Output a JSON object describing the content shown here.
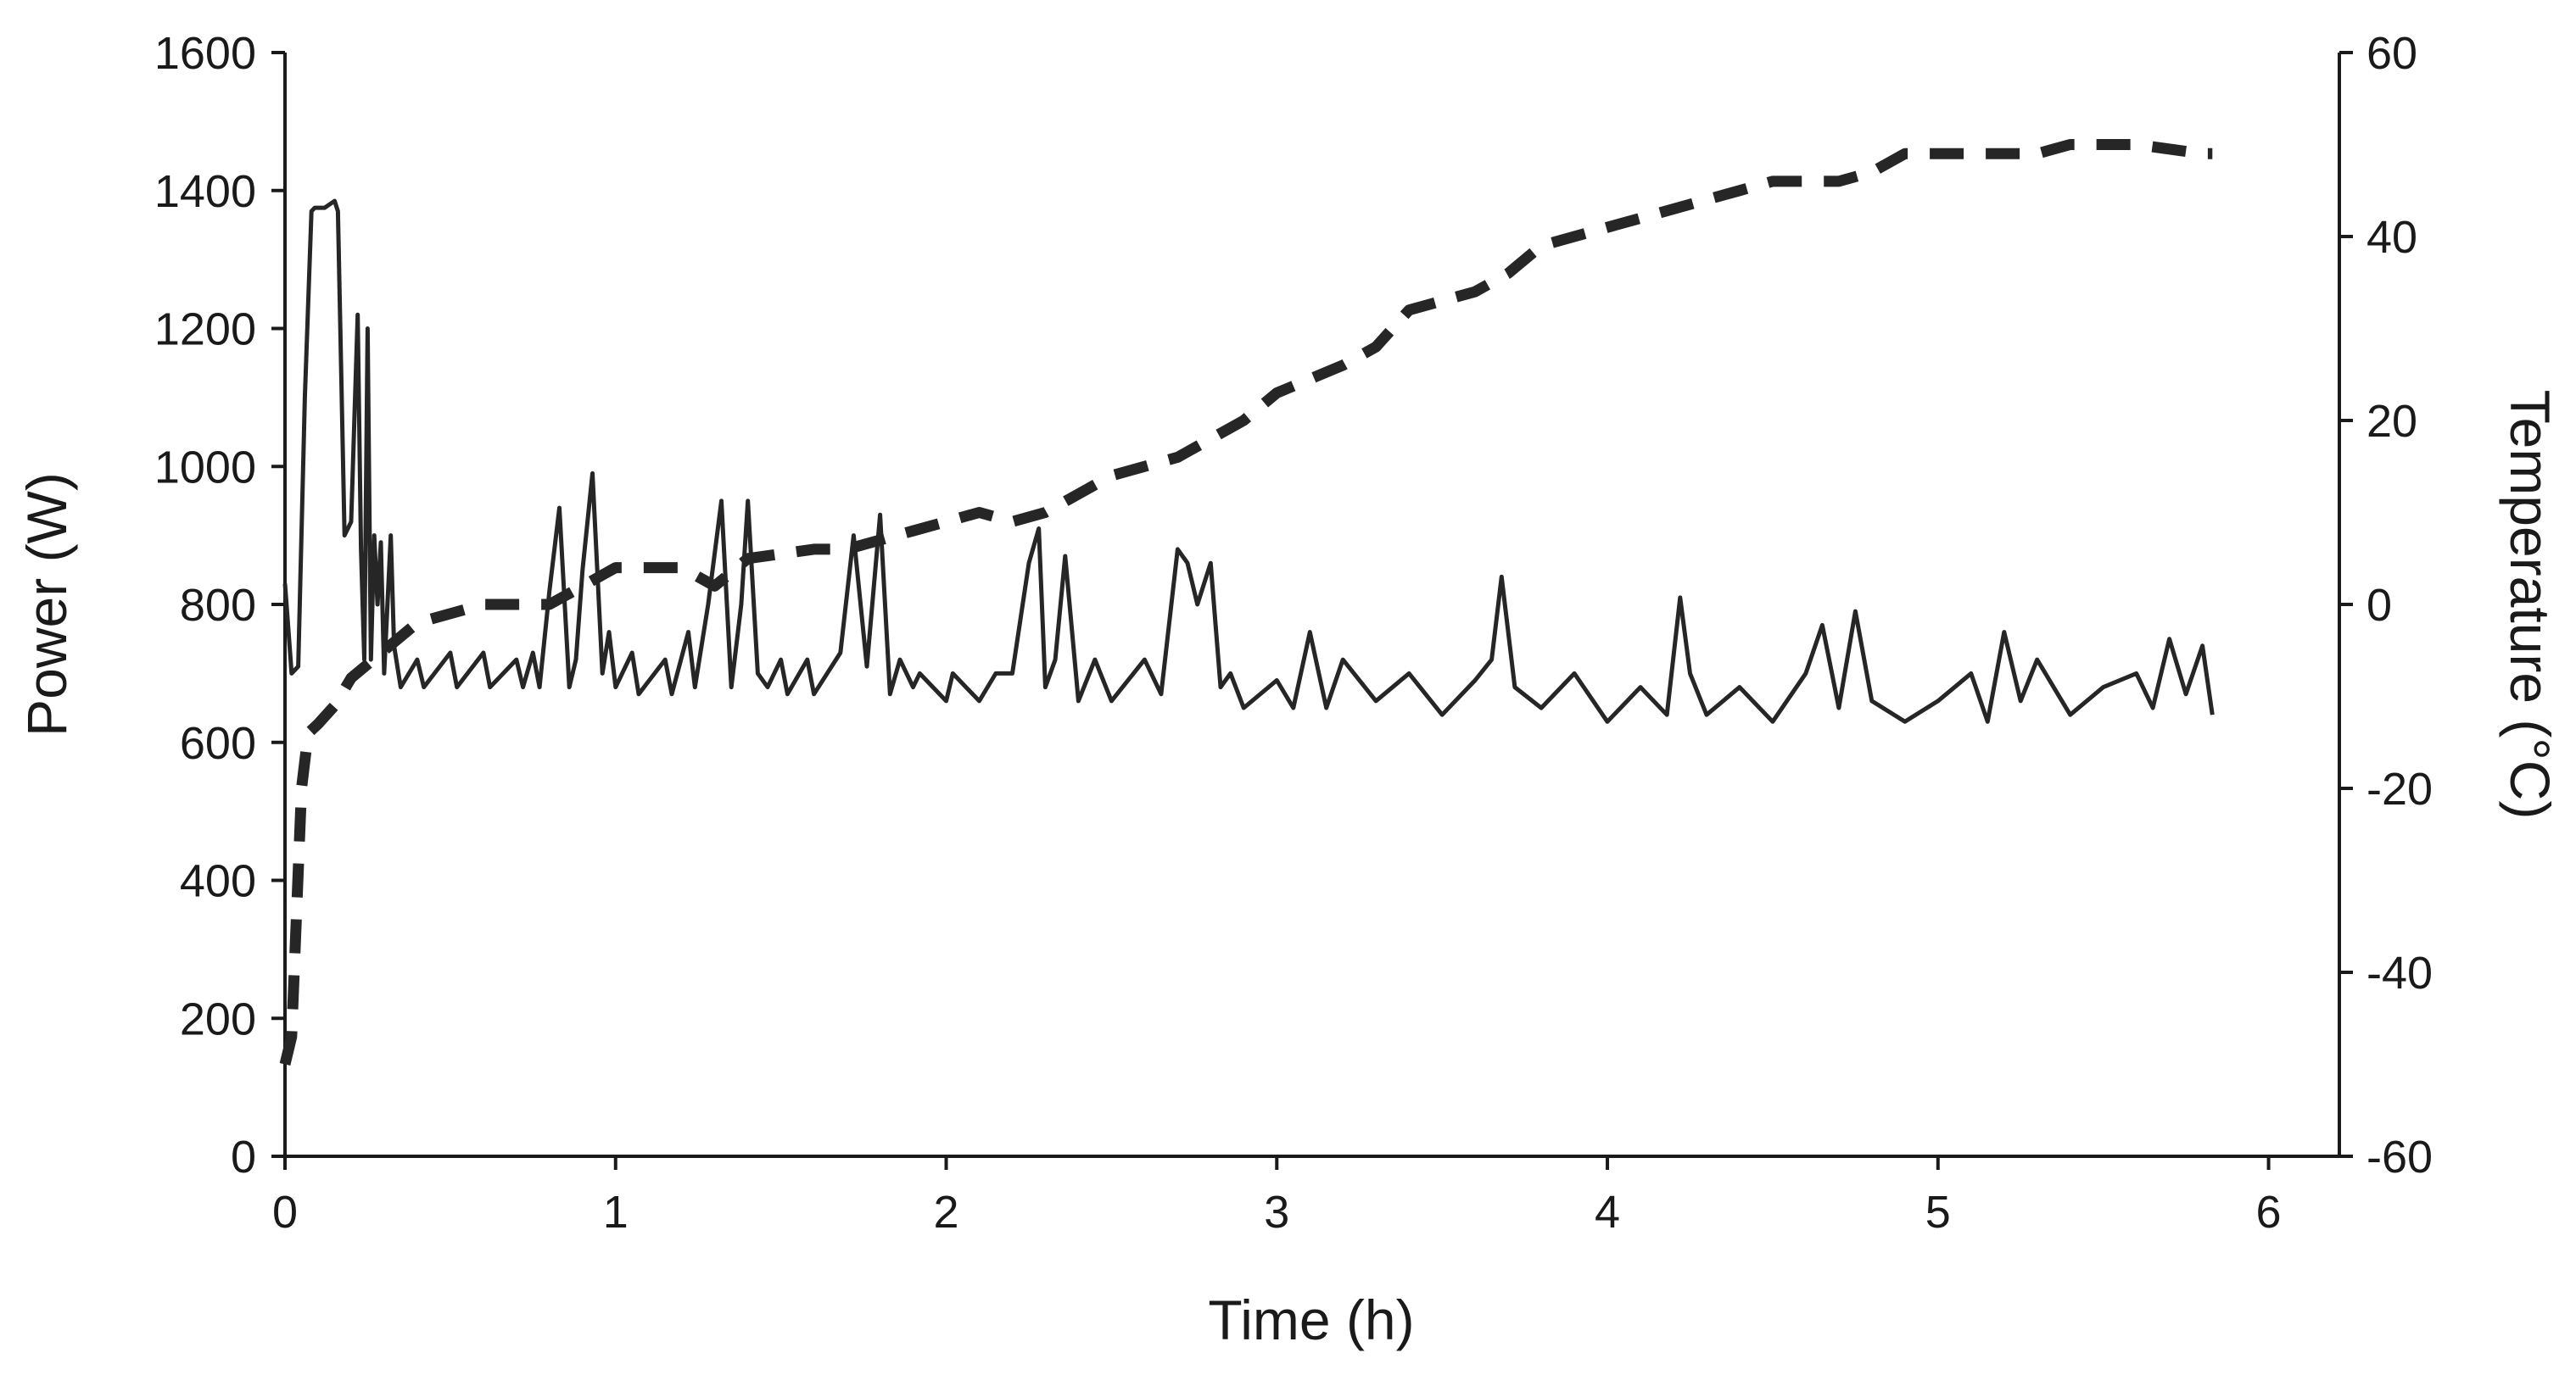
{
  "chart_data": {
    "type": "line",
    "title": "",
    "xlabel": "Time (h)",
    "ylabel": "Power (W)",
    "y2label": "Temperature (°C)",
    "xlim": [
      0,
      6.25
    ],
    "ylim": [
      0,
      1600
    ],
    "y2lim": [
      -60,
      60
    ],
    "x_ticks": [
      0,
      1,
      2,
      3,
      4,
      5,
      6
    ],
    "y_ticks": [
      0,
      200,
      400,
      600,
      800,
      1000,
      1200,
      1400,
      1600
    ],
    "y2_ticks": [
      -60,
      -40,
      -20,
      0,
      20,
      40,
      60
    ],
    "grid": false,
    "legend": "none",
    "series": [
      {
        "axis": "left",
        "style": "solid",
        "color": "#262626",
        "x": [
          0,
          0.02,
          0.04,
          0.06,
          0.08,
          0.09,
          0.12,
          0.15,
          0.16,
          0.18,
          0.2,
          0.22,
          0.23,
          0.24,
          0.25,
          0.26,
          0.27,
          0.28,
          0.29,
          0.3,
          0.32,
          0.33,
          0.35,
          0.4,
          0.42,
          0.5,
          0.52,
          0.6,
          0.62,
          0.7,
          0.72,
          0.75,
          0.77,
          0.8,
          0.83,
          0.86,
          0.88,
          0.9,
          0.93,
          0.96,
          0.98,
          1.0,
          1.05,
          1.07,
          1.15,
          1.17,
          1.22,
          1.24,
          1.28,
          1.32,
          1.35,
          1.38,
          1.4,
          1.43,
          1.46,
          1.5,
          1.52,
          1.58,
          1.6,
          1.68,
          1.72,
          1.76,
          1.8,
          1.83,
          1.86,
          1.9,
          1.92,
          2.0,
          2.02,
          2.1,
          2.15,
          2.2,
          2.25,
          2.28,
          2.3,
          2.33,
          2.36,
          2.4,
          2.45,
          2.5,
          2.6,
          2.65,
          2.7,
          2.73,
          2.76,
          2.8,
          2.83,
          2.86,
          2.9,
          3.0,
          3.05,
          3.1,
          3.15,
          3.2,
          3.3,
          3.4,
          3.5,
          3.6,
          3.65,
          3.68,
          3.72,
          3.8,
          3.9,
          4.0,
          4.1,
          4.18,
          4.22,
          4.25,
          4.3,
          4.4,
          4.5,
          4.6,
          4.65,
          4.7,
          4.75,
          4.8,
          4.9,
          5.0,
          5.1,
          5.15,
          5.2,
          5.25,
          5.3,
          5.4,
          5.5,
          5.6,
          5.65,
          5.7,
          5.75,
          5.8,
          5.83
        ],
        "values": [
          830,
          700,
          710,
          1100,
          1370,
          1375,
          1375,
          1385,
          1370,
          900,
          920,
          1220,
          880,
          720,
          1200,
          720,
          900,
          800,
          890,
          700,
          900,
          740,
          680,
          720,
          680,
          730,
          680,
          730,
          680,
          720,
          680,
          730,
          680,
          820,
          940,
          680,
          720,
          850,
          990,
          700,
          760,
          680,
          730,
          670,
          720,
          670,
          760,
          680,
          800,
          950,
          680,
          800,
          950,
          700,
          680,
          720,
          670,
          720,
          670,
          730,
          900,
          710,
          930,
          670,
          720,
          680,
          700,
          660,
          700,
          660,
          700,
          700,
          860,
          910,
          680,
          720,
          870,
          660,
          720,
          660,
          720,
          670,
          880,
          860,
          800,
          860,
          680,
          700,
          650,
          690,
          650,
          760,
          650,
          720,
          660,
          700,
          640,
          690,
          720,
          840,
          680,
          650,
          700,
          630,
          680,
          640,
          810,
          700,
          640,
          680,
          630,
          700,
          770,
          650,
          790,
          660,
          630,
          660,
          700,
          630,
          760,
          660,
          720,
          640,
          680,
          700,
          650,
          750,
          670,
          740,
          640
        ]
      },
      {
        "axis": "right",
        "style": "dashed",
        "color": "#262626",
        "x": [
          0,
          0.02,
          0.03,
          0.05,
          0.07,
          0.1,
          0.15,
          0.2,
          0.3,
          0.4,
          0.5,
          0.6,
          0.8,
          0.9,
          1.0,
          1.1,
          1.2,
          1.3,
          1.4,
          1.6,
          1.7,
          1.8,
          1.9,
          2.0,
          2.1,
          2.2,
          2.3,
          2.5,
          2.7,
          2.9,
          3.0,
          3.2,
          3.3,
          3.4,
          3.6,
          3.7,
          3.8,
          3.9,
          4.0,
          4.2,
          4.3,
          4.4,
          4.5,
          4.7,
          4.8,
          4.9,
          5.1,
          5.2,
          5.3,
          5.4,
          5.6,
          5.8,
          5.83
        ],
        "values": [
          -50,
          -47,
          -38,
          -20,
          -14,
          -13,
          -11,
          -8,
          -5,
          -2,
          -1,
          0,
          0,
          2,
          4,
          4,
          4,
          2,
          5,
          6,
          6,
          7,
          8,
          9,
          10,
          9,
          10,
          14,
          16,
          20,
          23,
          26,
          28,
          32,
          34,
          36,
          39,
          40,
          41,
          43,
          44,
          45,
          46,
          46,
          47,
          49,
          49,
          49,
          49,
          50,
          50,
          49,
          49
        ]
      }
    ]
  }
}
